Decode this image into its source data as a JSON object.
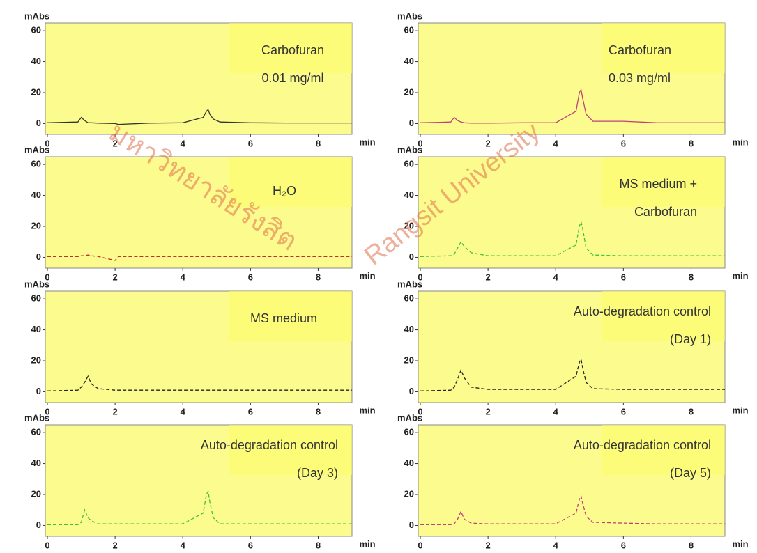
{
  "watermark": [
    "มหาวิทยาลัยรังสิต",
    "Rangsit University"
  ],
  "chart_data": [
    {
      "type": "line",
      "annotation": [
        "Carbofuran",
        "0.01 mg/ml"
      ],
      "xlabel": "min",
      "ylabel": "mAbs",
      "x": [
        0,
        0.9,
        1.0,
        1.1,
        1.2,
        1.3,
        1.5,
        2,
        2.1,
        3,
        4,
        4.6,
        4.7,
        4.75,
        4.8,
        4.9,
        5.1,
        6,
        7,
        8,
        9
      ],
      "series": [
        {
          "color": "#333333",
          "dash": false,
          "values": [
            0.5,
            1,
            4,
            2,
            0.5,
            0.5,
            0.3,
            0,
            -0.5,
            0.3,
            0.5,
            4,
            8,
            9,
            6,
            3,
            1,
            0.5,
            0.4,
            0.4,
            0.4
          ]
        }
      ],
      "xlim": [
        0,
        9
      ],
      "xticks": [
        0,
        2,
        4,
        6,
        8
      ],
      "ylim": [
        -7,
        65
      ],
      "yticks": [
        0,
        20,
        40,
        60
      ]
    },
    {
      "type": "line",
      "annotation": [
        "Carbofuran",
        "0.03 mg/ml"
      ],
      "xlabel": "min",
      "ylabel": "mAbs",
      "x": [
        0,
        0.9,
        1.0,
        1.1,
        1.2,
        1.3,
        1.5,
        2,
        2.1,
        3,
        4,
        4.6,
        4.7,
        4.75,
        4.8,
        4.9,
        5.1,
        6,
        7,
        8,
        9
      ],
      "series": [
        {
          "color": "#c0407a",
          "dash": false,
          "values": [
            0.5,
            1,
            4,
            2,
            1,
            0.5,
            0.3,
            0.3,
            0.3,
            0.5,
            0.5,
            8,
            20,
            22,
            16,
            6,
            1.5,
            1.5,
            0.5,
            0.5,
            0.5
          ]
        }
      ],
      "xlim": [
        0,
        9
      ],
      "xticks": [
        0,
        2,
        4,
        6,
        8
      ],
      "ylim": [
        -7,
        65
      ],
      "yticks": [
        0,
        20,
        40,
        60
      ]
    },
    {
      "type": "line",
      "annotation": [
        "H₂O"
      ],
      "xlabel": "min",
      "ylabel": "mAbs",
      "x": [
        0,
        0.9,
        1.0,
        1.1,
        1.2,
        1.3,
        1.5,
        2,
        2.1,
        3,
        4,
        4.6,
        4.7,
        4.75,
        4.8,
        4.9,
        5.1,
        6,
        7,
        8,
        9
      ],
      "series": [
        {
          "color": "#c03030",
          "dash": true,
          "values": [
            0.5,
            0.5,
            1,
            1,
            1.5,
            1,
            0.5,
            -2,
            0.5,
            0.5,
            0.5,
            0.5,
            0.5,
            0.5,
            0.5,
            0.5,
            0.5,
            0.5,
            0.5,
            0.5,
            0.5
          ]
        }
      ],
      "xlim": [
        0,
        9
      ],
      "xticks": [
        0,
        2,
        4,
        6,
        8
      ],
      "ylim": [
        -7,
        65
      ],
      "yticks": [
        0,
        20,
        40,
        60
      ]
    },
    {
      "type": "line",
      "annotation": [
        "MS medium +",
        "Carbofuran"
      ],
      "xlabel": "min",
      "ylabel": "mAbs",
      "x": [
        0,
        0.9,
        1.0,
        1.1,
        1.2,
        1.3,
        1.5,
        2,
        2.1,
        3,
        4,
        4.6,
        4.7,
        4.75,
        4.8,
        4.9,
        5.1,
        6,
        7,
        8,
        9
      ],
      "series": [
        {
          "color": "#40c040",
          "dash": true,
          "values": [
            0.5,
            1,
            2,
            6,
            10,
            7,
            3,
            1,
            1,
            1,
            1,
            8,
            20,
            23,
            18,
            6,
            1.5,
            1,
            1,
            1,
            1
          ]
        }
      ],
      "xlim": [
        0,
        9
      ],
      "xticks": [
        0,
        2,
        4,
        6,
        8
      ],
      "ylim": [
        -7,
        65
      ],
      "yticks": [
        0,
        20,
        40,
        60
      ]
    },
    {
      "type": "line",
      "annotation": [
        "MS medium"
      ],
      "xlabel": "min",
      "ylabel": "mAbs",
      "x": [
        0,
        0.9,
        1.0,
        1.1,
        1.2,
        1.3,
        1.5,
        2,
        2.1,
        3,
        4,
        4.6,
        4.7,
        4.75,
        4.8,
        4.9,
        5.1,
        6,
        7,
        8,
        9
      ],
      "series": [
        {
          "color": "#222222",
          "dash": true,
          "values": [
            0.5,
            1,
            3,
            6,
            10,
            5,
            2,
            1,
            1,
            1,
            1,
            1,
            1,
            1,
            1,
            1,
            1,
            1,
            1,
            1,
            1
          ]
        }
      ],
      "xlim": [
        0,
        9
      ],
      "xticks": [
        0,
        2,
        4,
        6,
        8
      ],
      "ylim": [
        -7,
        65
      ],
      "yticks": [
        0,
        20,
        40,
        60
      ]
    },
    {
      "type": "line",
      "annotation": [
        "Auto-degradation control",
        "(Day 1)"
      ],
      "xlabel": "min",
      "ylabel": "mAbs",
      "x": [
        0,
        0.9,
        1.0,
        1.1,
        1.2,
        1.3,
        1.5,
        2,
        2.1,
        3,
        4,
        4.6,
        4.7,
        4.75,
        4.8,
        4.9,
        5.1,
        6,
        7,
        8,
        9
      ],
      "series": [
        {
          "color": "#222222",
          "dash": true,
          "values": [
            0.5,
            1,
            3,
            8,
            14,
            9,
            3,
            1.5,
            1.5,
            1.5,
            1.5,
            10,
            19,
            21,
            15,
            6,
            2,
            1.5,
            1.5,
            1.5,
            1.5
          ]
        }
      ],
      "xlim": [
        0,
        9
      ],
      "xticks": [
        0,
        2,
        4,
        6,
        8
      ],
      "ylim": [
        -7,
        65
      ],
      "yticks": [
        0,
        20,
        40,
        60
      ]
    },
    {
      "type": "line",
      "annotation": [
        "Auto-degradation control",
        "(Day 3)"
      ],
      "xlabel": "min",
      "ylabel": "mAbs",
      "x": [
        0,
        0.9,
        1.0,
        1.1,
        1.2,
        1.3,
        1.5,
        2,
        2.1,
        3,
        4,
        4.6,
        4.7,
        4.75,
        4.8,
        4.9,
        5.1,
        6,
        7,
        8,
        9
      ],
      "series": [
        {
          "color": "#40c040",
          "dash": true,
          "values": [
            0.5,
            0.5,
            2,
            10,
            5,
            3,
            1,
            1,
            1,
            1,
            1,
            8,
            20,
            22,
            15,
            5,
            1,
            1,
            1,
            1,
            1
          ]
        }
      ],
      "xlim": [
        0,
        9
      ],
      "xticks": [
        0,
        2,
        4,
        6,
        8
      ],
      "ylim": [
        -7,
        65
      ],
      "yticks": [
        0,
        20,
        40,
        60
      ]
    },
    {
      "type": "line",
      "annotation": [
        "Auto-degradation control",
        "(Day 5)"
      ],
      "xlabel": "min",
      "ylabel": "mAbs",
      "x": [
        0,
        0.9,
        1.0,
        1.1,
        1.2,
        1.3,
        1.5,
        2,
        2.1,
        3,
        4,
        4.6,
        4.7,
        4.75,
        4.8,
        4.9,
        5.1,
        6,
        7,
        8,
        9
      ],
      "series": [
        {
          "color": "#c0407a",
          "dash": true,
          "values": [
            0.5,
            0.5,
            1,
            4,
            9,
            4,
            1.5,
            1,
            1,
            1,
            1,
            8,
            17,
            19,
            14,
            6,
            2,
            1.5,
            1,
            1,
            1
          ]
        }
      ],
      "xlim": [
        0,
        9
      ],
      "xticks": [
        0,
        2,
        4,
        6,
        8
      ],
      "ylim": [
        -7,
        65
      ],
      "yticks": [
        0,
        20,
        40,
        60
      ]
    }
  ]
}
